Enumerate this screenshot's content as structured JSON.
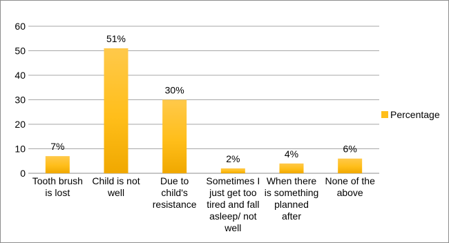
{
  "chart_data": {
    "type": "bar",
    "categories": [
      [
        "Tooth brush",
        "is lost"
      ],
      [
        "Child is not",
        "well"
      ],
      [
        "Due to",
        "child's",
        "resistance"
      ],
      [
        "Sometimes I",
        "just get too",
        "tired and fall",
        "asleep/ not",
        "well"
      ],
      [
        "When there",
        "is something",
        "planned",
        "after"
      ],
      [
        "None of the",
        "above"
      ]
    ],
    "series": [
      {
        "name": "Percentage",
        "values": [
          7,
          51,
          30,
          2,
          4,
          6
        ],
        "labels": [
          "7%",
          "51%",
          "30%",
          "2%",
          "4%",
          "6%"
        ]
      }
    ],
    "ylim": [
      0,
      60
    ],
    "yticks": [
      0,
      10,
      20,
      30,
      40,
      50,
      60
    ],
    "grid": true,
    "legend_position": "right",
    "colors": {
      "bar_top": "#FFC94A",
      "bar_mid": "#FFBE1A",
      "bar_bottom": "#F0A800",
      "grid": "#A6A6A6",
      "axis": "#8C8C8C"
    }
  }
}
